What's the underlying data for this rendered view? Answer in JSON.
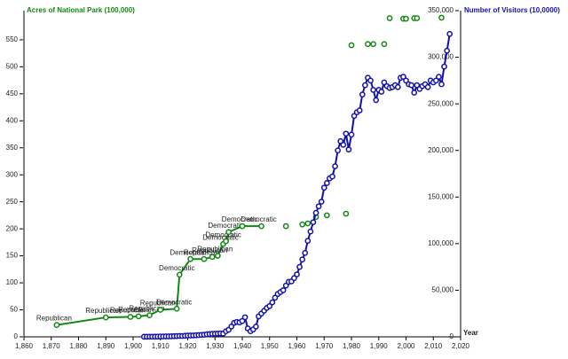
{
  "chart_data": {
    "type": "dual-line-scatter",
    "y_label": "Acres of National Park (100,000)",
    "y2_label": "Number of Visitors (10,0000)",
    "x_label": "Year",
    "xlim": [
      1860,
      2020
    ],
    "xticks": [
      {
        "value": 1860,
        "label": "1,860"
      },
      {
        "value": 1870,
        "label": "1,870"
      },
      {
        "value": 1880,
        "label": "1,880"
      },
      {
        "value": 1890,
        "label": "1,890"
      },
      {
        "value": 1900,
        "label": "1,900"
      },
      {
        "value": 1910,
        "label": "1,910"
      },
      {
        "value": 1920,
        "label": "1,920"
      },
      {
        "value": 1930,
        "label": "1,930"
      },
      {
        "value": 1940,
        "label": "1,940"
      },
      {
        "value": 1950,
        "label": "1,950"
      },
      {
        "value": 1960,
        "label": "1,960"
      },
      {
        "value": 1970,
        "label": "1,970"
      },
      {
        "value": 1980,
        "label": "1,980"
      },
      {
        "value": 1990,
        "label": "1,990"
      },
      {
        "value": 2000,
        "label": "2,000"
      },
      {
        "value": 2010,
        "label": "2,010"
      },
      {
        "value": 2020,
        "label": "2,020"
      }
    ],
    "ylim": [
      0,
      604
    ],
    "yticks": [
      0,
      50,
      100,
      150,
      200,
      250,
      300,
      350,
      400,
      450,
      500,
      550
    ],
    "y2lim": [
      0,
      350000
    ],
    "y2ticks": [
      0,
      {
        "value": 50000,
        "label": "50,000"
      },
      {
        "value": 100000,
        "label": "100,000"
      },
      {
        "value": 150000,
        "label": "150,000"
      },
      {
        "value": 200000,
        "label": "200,000"
      },
      {
        "value": 250000,
        "label": "250,000"
      },
      {
        "value": 300000,
        "label": "300,000"
      },
      {
        "value": 350000,
        "label": "350,000"
      }
    ],
    "series": [
      {
        "name": "Acres of National Park (100,000)",
        "color": "#118811",
        "x": [
          1872,
          1890,
          1899,
          1902,
          1906,
          1910,
          1916,
          1917,
          1921,
          1926,
          1929,
          1931,
          1933,
          1934,
          1935,
          1940,
          1947,
          1956,
          1962,
          1964,
          1967,
          1971,
          1978,
          1980,
          1986,
          1988,
          1992,
          1994,
          1999,
          2000,
          2003,
          2004,
          2013
        ],
        "values": [
          22,
          36,
          37,
          38,
          40,
          50,
          52,
          115,
          144,
          144,
          148,
          150,
          172,
          177,
          194,
          205,
          205,
          205,
          208,
          210,
          222,
          225,
          228,
          540,
          542,
          542,
          542,
          590,
          589,
          589,
          590,
          590,
          591
        ],
        "labels": [
          "Republican",
          "Republican",
          "Republican",
          "Republican",
          "Republican",
          "Republican",
          "Democratic",
          "Democratic",
          "Democratic",
          "Republican",
          "Republican",
          "Republican",
          "Democratic",
          "Democratic",
          "Democratic",
          "Democratic",
          "Democratic",
          null,
          null,
          null,
          null,
          null,
          null,
          null,
          null,
          null,
          null,
          null,
          null,
          null,
          null,
          null,
          null
        ]
      },
      {
        "name": "Number of Visitors (10,0000)",
        "color": "#1111aa",
        "axis": "y2",
        "x": [
          1904,
          1905,
          1906,
          1907,
          1908,
          1909,
          1910,
          1911,
          1912,
          1913,
          1914,
          1915,
          1916,
          1917,
          1918,
          1919,
          1920,
          1921,
          1922,
          1923,
          1924,
          1925,
          1926,
          1927,
          1928,
          1929,
          1930,
          1931,
          1932,
          1933,
          1934,
          1935,
          1936,
          1937,
          1938,
          1939,
          1940,
          1941,
          1942,
          1943,
          1944,
          1945,
          1946,
          1947,
          1948,
          1949,
          1950,
          1951,
          1952,
          1953,
          1954,
          1955,
          1956,
          1957,
          1958,
          1959,
          1960,
          1961,
          1962,
          1963,
          1964,
          1965,
          1966,
          1967,
          1968,
          1969,
          1970,
          1971,
          1972,
          1973,
          1974,
          1975,
          1976,
          1977,
          1978,
          1979,
          1980,
          1981,
          1982,
          1983,
          1984,
          1985,
          1986,
          1987,
          1988,
          1989,
          1990,
          1991,
          1992,
          1993,
          1994,
          1995,
          1996,
          1997,
          1998,
          1999,
          2000,
          2001,
          2002,
          2003,
          2004,
          2005,
          2006,
          2007,
          2008,
          2009,
          2010,
          2011,
          2012,
          2013,
          2014,
          2015,
          2016
        ],
        "values": [
          120,
          140,
          180,
          200,
          240,
          290,
          350,
          400,
          450,
          500,
          600,
          700,
          850,
          1000,
          900,
          1200,
          1300,
          1400,
          1500,
          1700,
          1900,
          2100,
          2300,
          2700,
          3000,
          3200,
          3300,
          3500,
          3700,
          3500,
          6000,
          7600,
          11000,
          15000,
          16000,
          15500,
          17000,
          21000,
          9000,
          6000,
          8000,
          11000,
          22000,
          25000,
          28000,
          31000,
          33000,
          37000,
          42000,
          46000,
          48000,
          50000,
          55000,
          59000,
          59500,
          63000,
          67000,
          75000,
          83000,
          90000,
          103000,
          113000,
          123000,
          133000,
          140000,
          145000,
          160000,
          165000,
          170000,
          172000,
          183000,
          200000,
          210000,
          206000,
          218000,
          201000,
          217000,
          237000,
          241000,
          243000,
          260000,
          270000,
          278000,
          275000,
          265000,
          254000,
          265000,
          263000,
          273000,
          269000,
          267000,
          268000,
          270000,
          268000,
          278000,
          279000,
          275000,
          271000,
          270000,
          262000,
          270000,
          266000,
          269000,
          271000,
          268000,
          275000,
          273000,
          275000,
          279000,
          271000,
          290000,
          307000,
          325000
        ]
      }
    ]
  }
}
